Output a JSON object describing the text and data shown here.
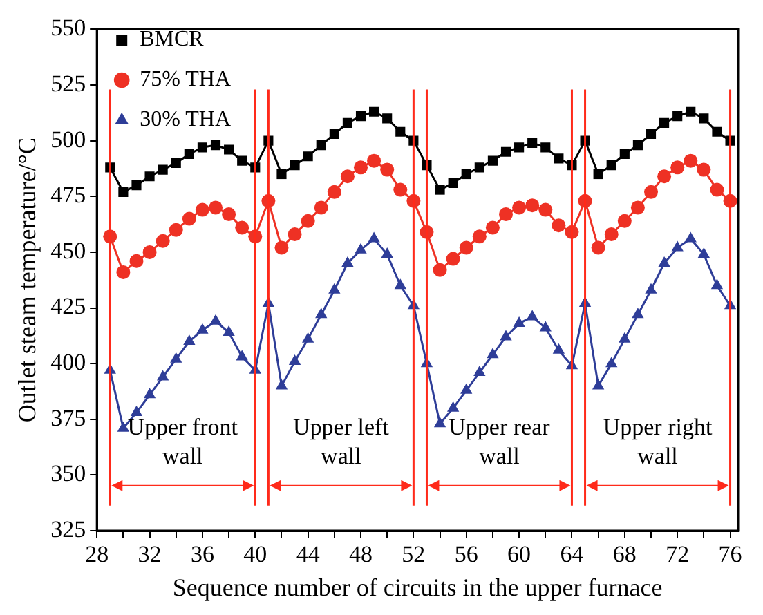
{
  "chart_data": {
    "type": "line",
    "xlabel": "Sequence number of circuits in the upper furnace",
    "ylabel": "Outlet steam temperature/°C",
    "x": [
      29,
      30,
      31,
      32,
      33,
      34,
      35,
      36,
      37,
      38,
      39,
      40,
      41,
      42,
      43,
      44,
      45,
      46,
      47,
      48,
      49,
      50,
      51,
      52,
      53,
      54,
      55,
      56,
      57,
      58,
      59,
      60,
      61,
      62,
      63,
      64,
      65,
      66,
      67,
      68,
      69,
      70,
      71,
      72,
      73,
      74,
      75,
      76
    ],
    "series": [
      {
        "name": "BMCR",
        "color": "#000000",
        "marker": "square",
        "values": [
          488,
          477,
          480,
          484,
          487,
          490,
          494,
          497,
          498,
          496,
          491,
          488,
          500,
          485,
          489,
          493,
          498,
          503,
          508,
          511,
          513,
          510,
          504,
          500,
          489,
          478,
          481,
          485,
          488,
          491,
          495,
          497,
          499,
          497,
          492,
          489,
          500,
          485,
          489,
          494,
          498,
          503,
          508,
          511,
          513,
          510,
          504,
          500
        ]
      },
      {
        "name": "75% THA",
        "color": "#ee3124",
        "marker": "circle",
        "values": [
          457,
          441,
          446,
          450,
          455,
          460,
          465,
          469,
          470,
          467,
          461,
          457,
          473,
          452,
          458,
          464,
          470,
          477,
          484,
          488,
          491,
          487,
          478,
          473,
          459,
          442,
          447,
          452,
          457,
          461,
          467,
          470,
          471,
          469,
          462,
          459,
          473,
          452,
          458,
          464,
          470,
          477,
          484,
          488,
          491,
          487,
          478,
          473
        ]
      },
      {
        "name": "30% THA",
        "color": "#2e3d98",
        "marker": "triangle",
        "values": [
          397,
          371,
          378,
          386,
          394,
          402,
          410,
          415,
          419,
          414,
          403,
          397,
          427,
          390,
          401,
          411,
          422,
          433,
          445,
          451,
          456,
          449,
          435,
          426,
          400,
          373,
          380,
          388,
          396,
          404,
          412,
          418,
          421,
          416,
          406,
          399,
          427,
          390,
          400,
          411,
          422,
          433,
          445,
          452,
          456,
          449,
          435,
          426
        ]
      }
    ],
    "xlim": [
      28,
      76.6
    ],
    "xticks": [
      28,
      {
        "value": 30,
        "label": null
      },
      32,
      {
        "value": 34,
        "label": null
      },
      36,
      {
        "value": 38,
        "label": null
      },
      40,
      {
        "value": 42,
        "label": null
      },
      44,
      {
        "value": 46,
        "label": null
      },
      48,
      {
        "value": 50,
        "label": null
      },
      52,
      {
        "value": 54,
        "label": null
      },
      56,
      {
        "value": 58,
        "label": null
      },
      60,
      {
        "value": 62,
        "label": null
      },
      64,
      {
        "value": 66,
        "label": null
      },
      68,
      {
        "value": 70,
        "label": null
      },
      72,
      {
        "value": 74,
        "label": null
      },
      76
    ],
    "ylim": [
      325,
      550
    ],
    "yticks": [
      325,
      350,
      375,
      400,
      425,
      450,
      475,
      500,
      525,
      550
    ],
    "ref_lines": [
      {
        "axis": "x",
        "value": 29,
        "color": "#ff2a1a"
      },
      {
        "axis": "x",
        "value": 40,
        "color": "#ff2a1a"
      },
      {
        "axis": "x",
        "value": 41,
        "color": "#ff2a1a"
      },
      {
        "axis": "x",
        "value": 52,
        "color": "#ff2a1a"
      },
      {
        "axis": "x",
        "value": 53,
        "color": "#ff2a1a"
      },
      {
        "axis": "x",
        "value": 64,
        "color": "#ff2a1a"
      },
      {
        "axis": "x",
        "value": 65,
        "color": "#ff2a1a"
      },
      {
        "axis": "x",
        "value": 76,
        "color": "#ff2a1a"
      }
    ],
    "annotations": [
      "Upper front wall",
      "Upper left wall",
      "Upper rear wall",
      "Upper right wall"
    ],
    "grid": false,
    "legend": "top left",
    "line_style": "solid"
  }
}
